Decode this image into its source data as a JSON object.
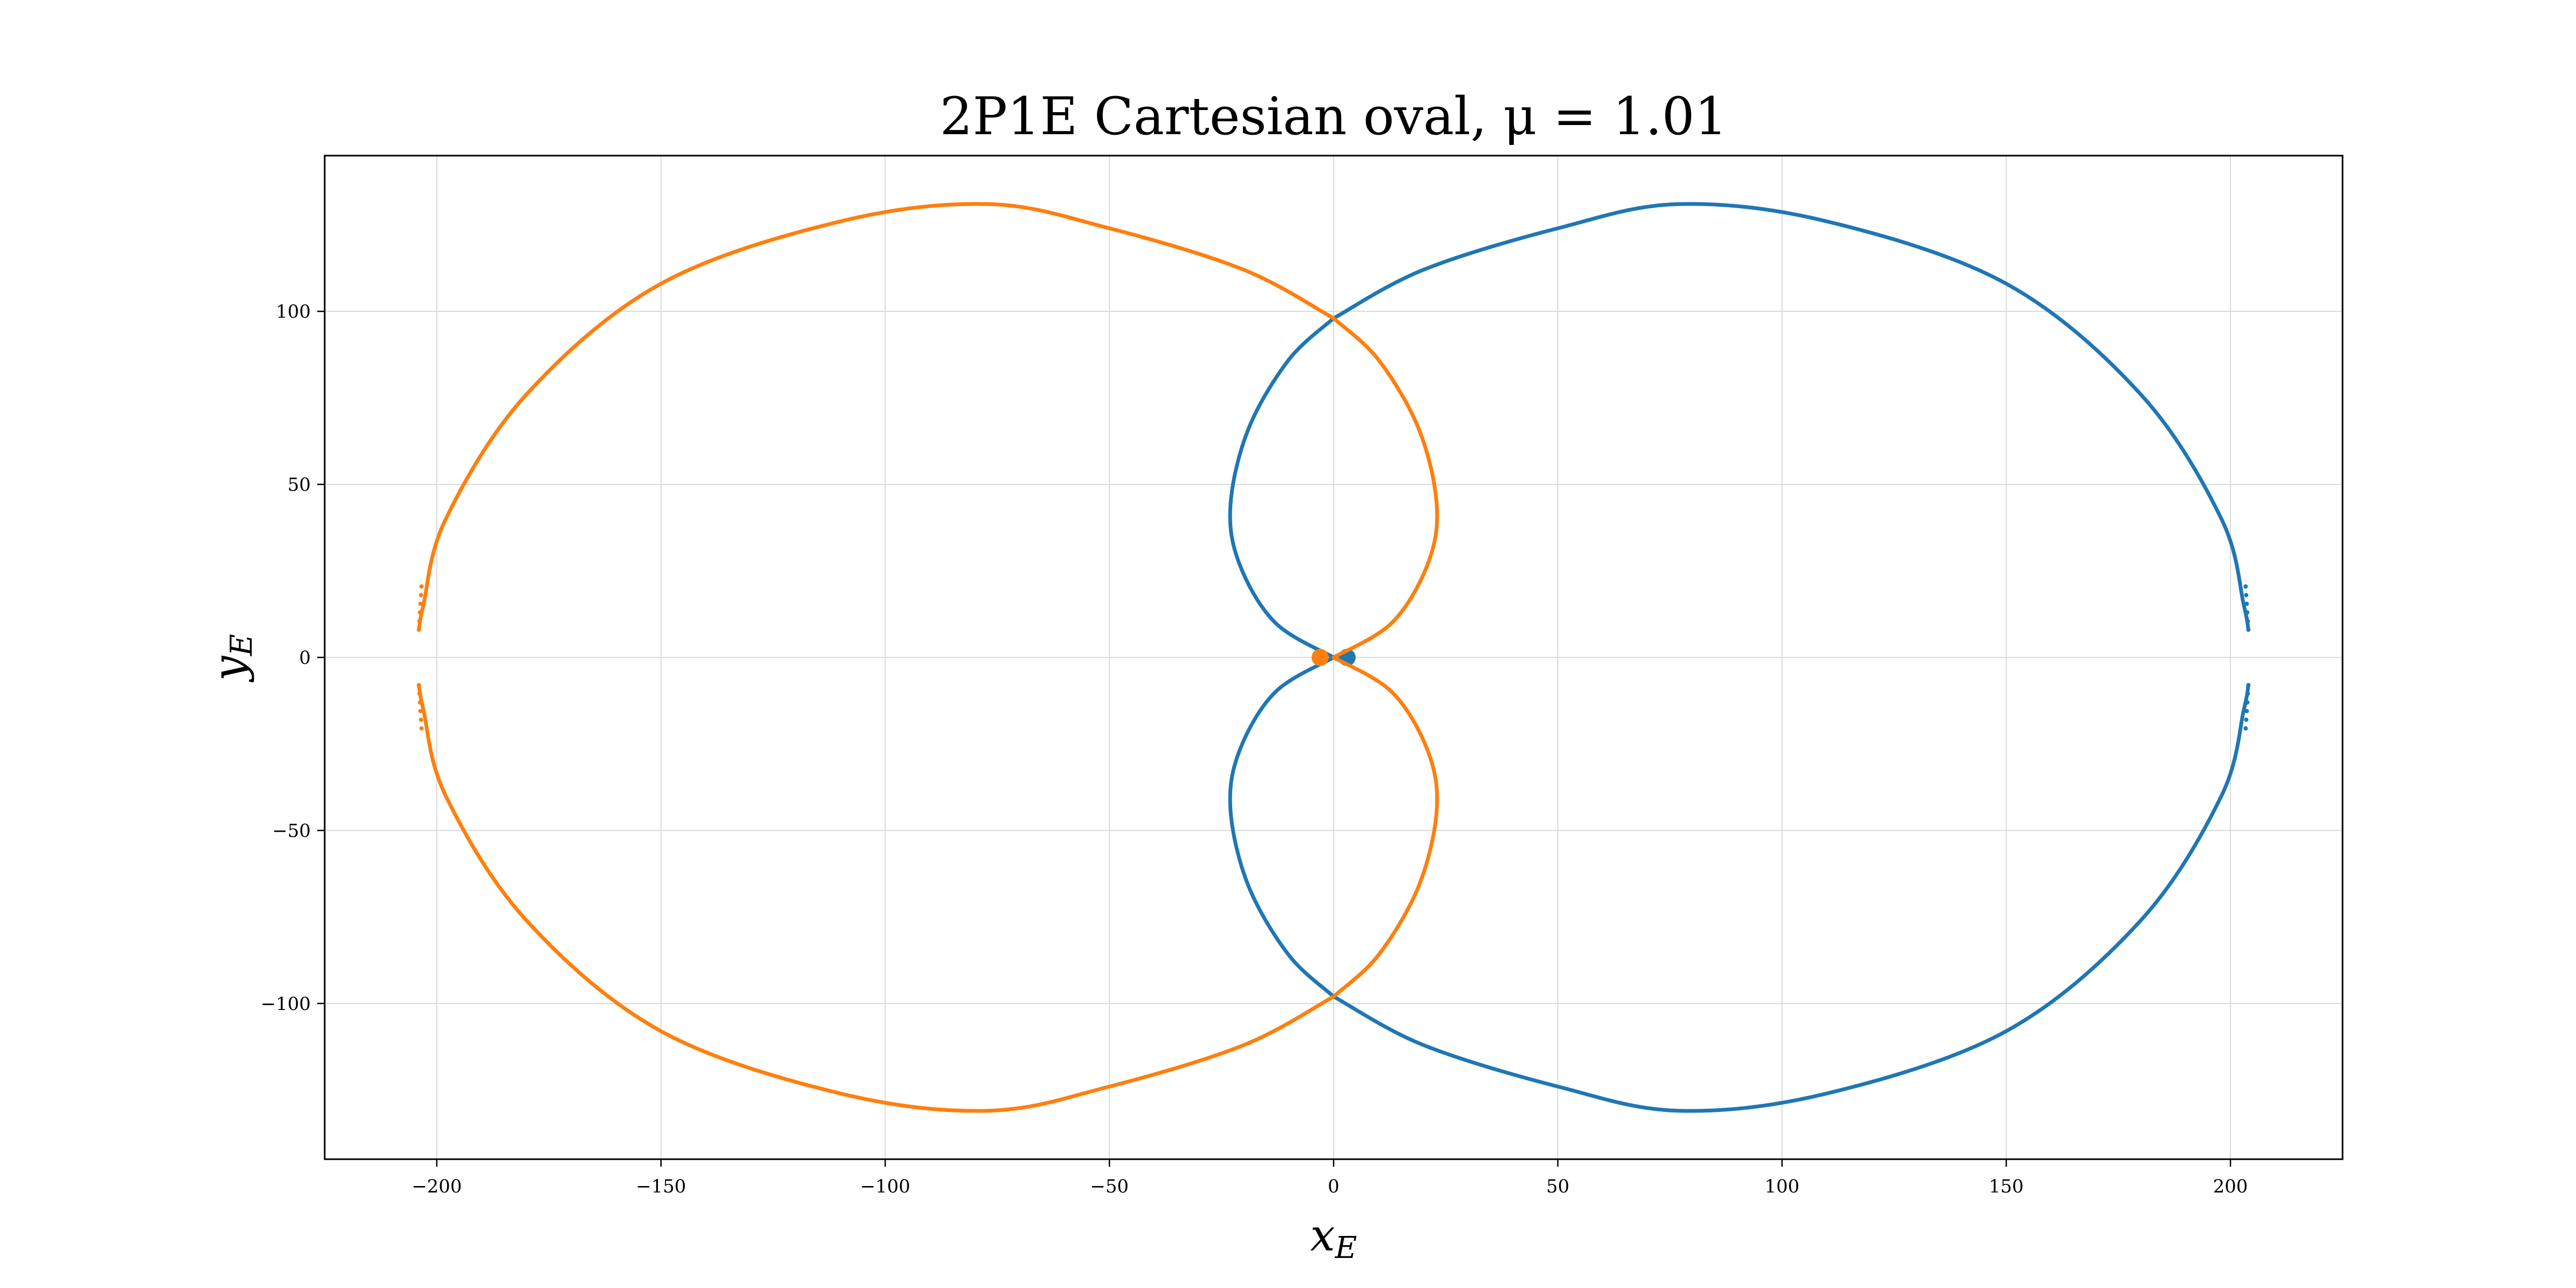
{
  "chart_data": {
    "type": "scatter",
    "title": "2P1E Cartesian oval, μ = 1.01",
    "xlabel": "x_E",
    "ylabel": "y_E",
    "xlim": [
      -225,
      225
    ],
    "ylim": [
      -145,
      145
    ],
    "xticks": [
      -200,
      -150,
      -100,
      -50,
      0,
      50,
      100,
      150,
      200
    ],
    "xtick_labels": [
      "−200",
      "−150",
      "−100",
      "−50",
      "0",
      "50",
      "100",
      "150",
      "200"
    ],
    "yticks": [
      -100,
      -50,
      0,
      50,
      100
    ],
    "ytick_labels": [
      "−100",
      "−50",
      "0",
      "50",
      "100"
    ],
    "grid": true,
    "legend": "none",
    "colors": {
      "blue": "#1f77b4",
      "orange": "#ff7f0e",
      "grid": "#d9d9d9",
      "frame": "#000000"
    },
    "series": [
      {
        "color": "#1f77b4",
        "marker_points": [
          [
            3,
            0
          ]
        ],
        "outer_loop_samples": [
          [
            0,
            98
          ],
          [
            20,
            112
          ],
          [
            50,
            124
          ],
          [
            77,
            131
          ],
          [
            110,
            126
          ],
          [
            150,
            108
          ],
          [
            180,
            76
          ],
          [
            198,
            40
          ],
          [
            203,
            15
          ],
          [
            204,
            8
          ],
          [
            204,
            -8
          ],
          [
            203,
            -15
          ],
          [
            198,
            -40
          ],
          [
            180,
            -76
          ],
          [
            150,
            -108
          ],
          [
            110,
            -126
          ],
          [
            77,
            -131
          ],
          [
            50,
            -124
          ],
          [
            20,
            -112
          ],
          [
            0,
            -98
          ]
        ],
        "inner_loop_samples": [
          [
            0,
            0
          ],
          [
            -13,
            10
          ],
          [
            -21,
            27
          ],
          [
            -23,
            44
          ],
          [
            -19,
            66
          ],
          [
            -10,
            86
          ],
          [
            0,
            98
          ],
          [
            0,
            -98
          ],
          [
            -10,
            -86
          ],
          [
            -19,
            -66
          ],
          [
            -23,
            -44
          ],
          [
            -21,
            -27
          ],
          [
            -13,
            -10
          ],
          [
            0,
            0
          ]
        ]
      },
      {
        "color": "#ff7f0e",
        "marker_points": [
          [
            -3,
            0
          ]
        ],
        "outer_loop_samples": [
          [
            0,
            98
          ],
          [
            -20,
            112
          ],
          [
            -50,
            124
          ],
          [
            -77,
            131
          ],
          [
            -110,
            126
          ],
          [
            -150,
            108
          ],
          [
            -180,
            76
          ],
          [
            -198,
            40
          ],
          [
            -203,
            15
          ],
          [
            -204,
            8
          ],
          [
            -204,
            -8
          ],
          [
            -203,
            -15
          ],
          [
            -198,
            -40
          ],
          [
            -180,
            -76
          ],
          [
            -150,
            -108
          ],
          [
            -110,
            -126
          ],
          [
            -77,
            -131
          ],
          [
            -50,
            -124
          ],
          [
            -20,
            -112
          ],
          [
            0,
            -98
          ]
        ],
        "inner_loop_samples": [
          [
            0,
            0
          ],
          [
            13,
            10
          ],
          [
            21,
            27
          ],
          [
            23,
            44
          ],
          [
            19,
            66
          ],
          [
            10,
            86
          ],
          [
            0,
            98
          ],
          [
            0,
            -98
          ],
          [
            10,
            -86
          ],
          [
            19,
            -66
          ],
          [
            23,
            -44
          ],
          [
            21,
            -27
          ],
          [
            13,
            -10
          ],
          [
            0,
            0
          ]
        ]
      }
    ]
  }
}
